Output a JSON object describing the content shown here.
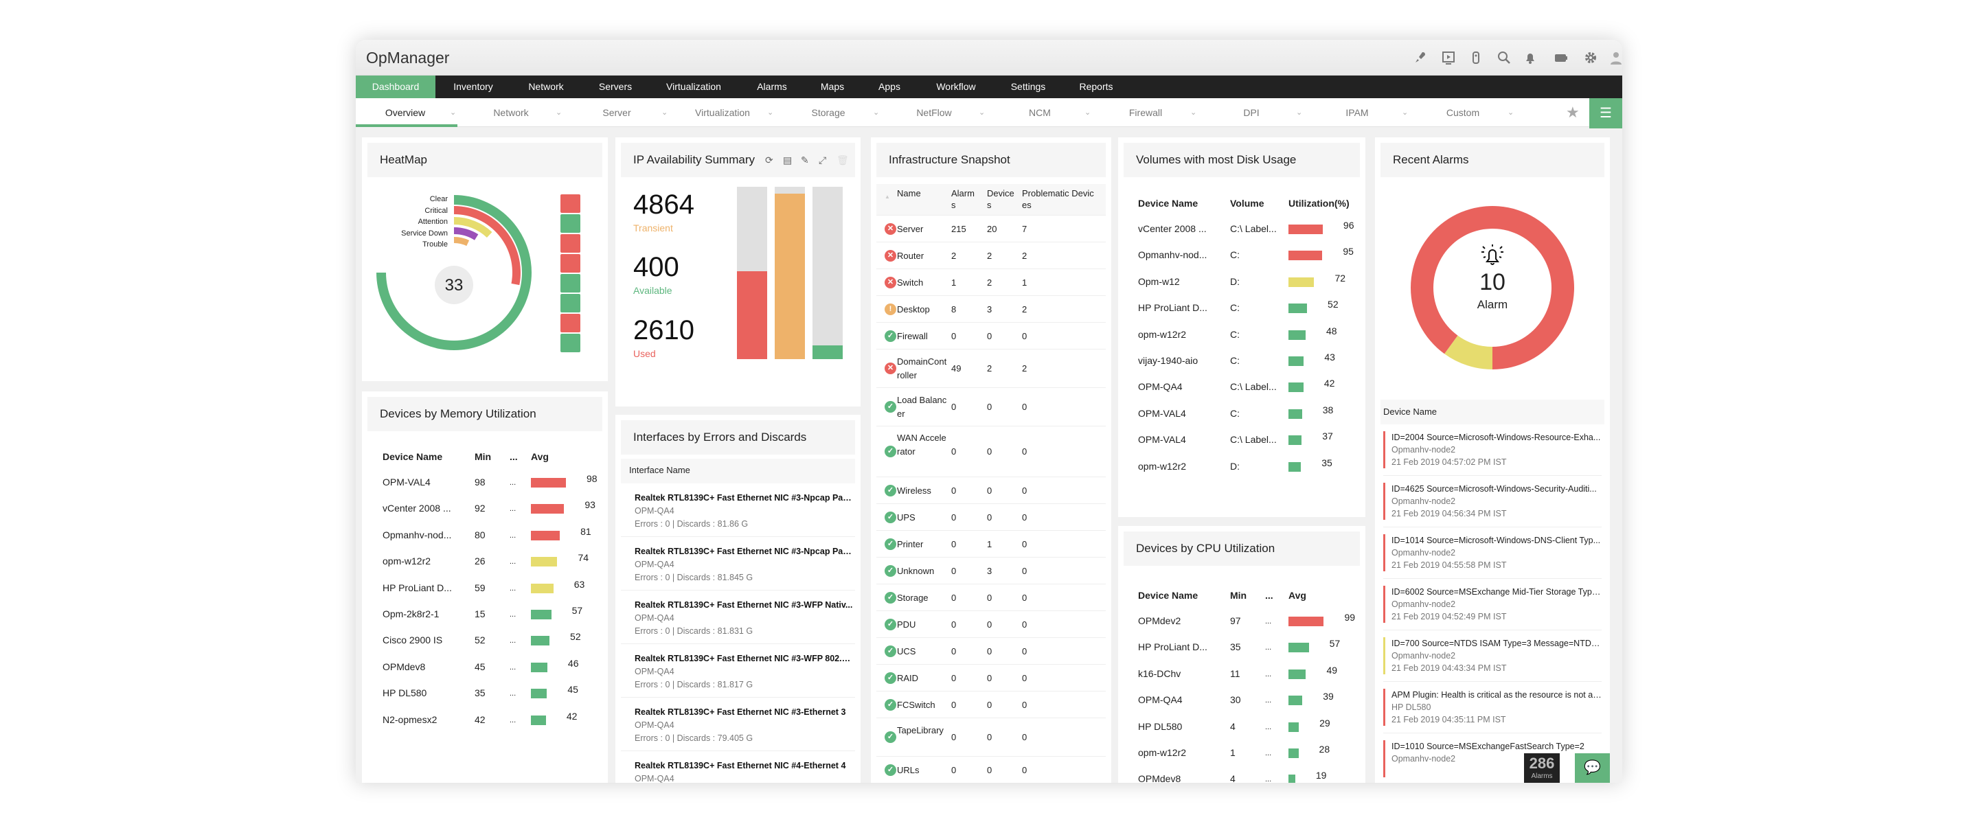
{
  "app_title": "OpManager",
  "colors": {
    "accent": "#63b47d",
    "critical": "#e9625d",
    "attention": "#e6dc6e",
    "clear": "#5db67e",
    "trouble": "#eeb26a",
    "service_down": "#9b51b8",
    "nav_bg": "#222222"
  },
  "titlebar_icons": [
    "rocket-icon",
    "monitor-play-icon",
    "remote-icon",
    "search-icon",
    "bell-icon",
    "battery-icon",
    "gear-icon",
    "user-icon"
  ],
  "main_nav": [
    "Dashboard",
    "Inventory",
    "Network",
    "Servers",
    "Virtualization",
    "Alarms",
    "Maps",
    "Apps",
    "Workflow",
    "Settings",
    "Reports"
  ],
  "sub_nav": [
    "Overview",
    "Network",
    "Server",
    "Virtualization",
    "Storage",
    "NetFlow",
    "NCM",
    "Firewall",
    "DPI",
    "IPAM",
    "Custom"
  ],
  "heatmap": {
    "title": "HeatMap",
    "total": "33",
    "rings": [
      {
        "label": "Clear",
        "color": "#5db67e",
        "fraction": 0.75
      },
      {
        "label": "Critical",
        "color": "#e9625d",
        "fraction": 0.28
      },
      {
        "label": "Attention",
        "color": "#e6dc6e",
        "fraction": 0.12
      },
      {
        "label": "Service Down",
        "color": "#9b51b8",
        "fraction": 0.09
      },
      {
        "label": "Trouble",
        "color": "#eeb26a",
        "fraction": 0.07
      }
    ],
    "squares": [
      "critical",
      "clear",
      "critical",
      "critical",
      "clear",
      "clear",
      "critical",
      "clear"
    ]
  },
  "ip": {
    "title": "IP Availability Summary",
    "tools": [
      "refresh-icon",
      "report-icon",
      "edit-icon",
      "expand-icon",
      "delete-icon"
    ],
    "stats": [
      {
        "value": "4864",
        "label": "Transient",
        "color": "#eeb26a"
      },
      {
        "value": "400",
        "label": "Available",
        "color": "#5db67e"
      },
      {
        "value": "2610",
        "label": "Used",
        "color": "#e9625d"
      }
    ],
    "bars": [
      {
        "color": "#e9625d",
        "fill": 0.51
      },
      {
        "color": "#eeb26a",
        "fill": 0.96
      },
      {
        "color": "#5db67e",
        "fill": 0.08
      }
    ]
  },
  "memory": {
    "title": "Devices by Memory Utilization",
    "headers": [
      "Device Name",
      "Min",
      "...",
      "Avg"
    ],
    "rows": [
      {
        "name": "OPM-VAL4",
        "min": "98",
        "avg": 98,
        "level": "critical"
      },
      {
        "name": "vCenter 2008 ...",
        "min": "92",
        "avg": 93,
        "level": "critical"
      },
      {
        "name": "Opmanhv-nod...",
        "min": "80",
        "avg": 81,
        "level": "critical"
      },
      {
        "name": "opm-w12r2",
        "min": "26",
        "avg": 74,
        "level": "attention"
      },
      {
        "name": "HP ProLiant D...",
        "min": "59",
        "avg": 63,
        "level": "attention"
      },
      {
        "name": "Opm-2k8r2-1",
        "min": "15",
        "avg": 57,
        "level": "clear"
      },
      {
        "name": "Cisco 2900 IS",
        "min": "52",
        "avg": 52,
        "level": "clear"
      },
      {
        "name": "OPMdev8",
        "min": "45",
        "avg": 46,
        "level": "clear"
      },
      {
        "name": "HP DL580",
        "min": "35",
        "avg": 45,
        "level": "clear"
      },
      {
        "name": "N2-opmesx2",
        "min": "42",
        "avg": 42,
        "level": "clear"
      }
    ]
  },
  "interfaces": {
    "title": "Interfaces by Errors and Discards",
    "header": "Interface Name",
    "items": [
      {
        "name": "Realtek RTL8139C+ Fast Ethernet NIC #3-Npcap Pack...",
        "device": "OPM-QA4",
        "stats": "Errors : 0 | Discards : 81.86 G"
      },
      {
        "name": "Realtek RTL8139C+ Fast Ethernet NIC #3-Npcap Pack...",
        "device": "OPM-QA4",
        "stats": "Errors : 0 | Discards : 81.845 G"
      },
      {
        "name": "Realtek RTL8139C+ Fast Ethernet NIC #3-WFP Nativ...",
        "device": "OPM-QA4",
        "stats": "Errors : 0 | Discards : 81.831 G"
      },
      {
        "name": "Realtek RTL8139C+ Fast Ethernet NIC #3-WFP 802.3 ...",
        "device": "OPM-QA4",
        "stats": "Errors : 0 | Discards : 81.817 G"
      },
      {
        "name": "Realtek RTL8139C+ Fast Ethernet NIC #3-Ethernet 3",
        "device": "OPM-QA4",
        "stats": "Errors : 0 | Discards : 79.405 G"
      },
      {
        "name": "Realtek RTL8139C+ Fast Ethernet NIC #4-Ethernet 4",
        "device": "OPM-QA4",
        "stats": ""
      }
    ]
  },
  "infra": {
    "title": "Infrastructure Snapshot",
    "headers": [
      "Name",
      "Alarms",
      "Devices",
      "Problematic Devices"
    ],
    "rows": [
      {
        "name": "Server",
        "status": "critical",
        "alarms": "215",
        "devices": "20",
        "problematic": "7"
      },
      {
        "name": "Router",
        "status": "critical",
        "alarms": "2",
        "devices": "2",
        "problematic": "2"
      },
      {
        "name": "Switch",
        "status": "critical",
        "alarms": "1",
        "devices": "2",
        "problematic": "1"
      },
      {
        "name": "Desktop",
        "status": "trouble",
        "alarms": "8",
        "devices": "3",
        "problematic": "2"
      },
      {
        "name": "Firewall",
        "status": "clear",
        "alarms": "0",
        "devices": "0",
        "problematic": "0"
      },
      {
        "name": "DomainController",
        "status": "critical",
        "alarms": "49",
        "devices": "2",
        "problematic": "2"
      },
      {
        "name": "Load Balancer",
        "status": "clear",
        "alarms": "0",
        "devices": "0",
        "problematic": "0"
      },
      {
        "name": "WAN Accelerator",
        "status": "clear",
        "alarms": "0",
        "devices": "0",
        "problematic": "0"
      },
      {
        "name": "Wireless",
        "status": "clear",
        "alarms": "0",
        "devices": "0",
        "problematic": "0"
      },
      {
        "name": "UPS",
        "status": "clear",
        "alarms": "0",
        "devices": "0",
        "problematic": "0"
      },
      {
        "name": "Printer",
        "status": "clear",
        "alarms": "0",
        "devices": "1",
        "problematic": "0"
      },
      {
        "name": "Unknown",
        "status": "clear",
        "alarms": "0",
        "devices": "3",
        "problematic": "0"
      },
      {
        "name": "Storage",
        "status": "clear",
        "alarms": "0",
        "devices": "0",
        "problematic": "0"
      },
      {
        "name": "PDU",
        "status": "clear",
        "alarms": "0",
        "devices": "0",
        "problematic": "0"
      },
      {
        "name": "UCS",
        "status": "clear",
        "alarms": "0",
        "devices": "0",
        "problematic": "0"
      },
      {
        "name": "RAID",
        "status": "clear",
        "alarms": "0",
        "devices": "0",
        "problematic": "0"
      },
      {
        "name": "FCSwitch",
        "status": "clear",
        "alarms": "0",
        "devices": "0",
        "problematic": "0"
      },
      {
        "name": "TapeLibrary",
        "status": "clear",
        "alarms": "0",
        "devices": "0",
        "problematic": "0"
      },
      {
        "name": "URLs",
        "status": "clear",
        "alarms": "0",
        "devices": "0",
        "problematic": "0"
      }
    ]
  },
  "volumes": {
    "title": "Volumes with most Disk Usage",
    "headers": [
      "Device Name",
      "Volume",
      "Utilization(%)"
    ],
    "rows": [
      {
        "name": "vCenter 2008 ...",
        "volume": "C:\\ Label...",
        "util": 96,
        "level": "critical"
      },
      {
        "name": "Opmanhv-nod...",
        "volume": "C:",
        "util": 95,
        "level": "critical"
      },
      {
        "name": "Opm-w12",
        "volume": "D:",
        "util": 72,
        "level": "attention"
      },
      {
        "name": "HP ProLiant D...",
        "volume": "C:",
        "util": 52,
        "level": "clear"
      },
      {
        "name": "opm-w12r2",
        "volume": "C:",
        "util": 48,
        "level": "clear"
      },
      {
        "name": "vijay-1940-aio",
        "volume": "C:",
        "util": 43,
        "level": "clear"
      },
      {
        "name": "OPM-QA4",
        "volume": "C:\\ Label...",
        "util": 42,
        "level": "clear"
      },
      {
        "name": "OPM-VAL4",
        "volume": "C:",
        "util": 38,
        "level": "clear"
      },
      {
        "name": "OPM-VAL4",
        "volume": "C:\\ Label...",
        "util": 37,
        "level": "clear"
      },
      {
        "name": "opm-w12r2",
        "volume": "D:",
        "util": 35,
        "level": "clear"
      }
    ]
  },
  "cpu": {
    "title": "Devices by CPU Utilization",
    "headers": [
      "Device Name",
      "Min",
      "...",
      "Avg"
    ],
    "rows": [
      {
        "name": "OPMdev2",
        "min": "97",
        "avg": 99,
        "level": "critical"
      },
      {
        "name": "HP ProLiant D...",
        "min": "35",
        "avg": 57,
        "level": "clear"
      },
      {
        "name": "k16-DChv",
        "min": "11",
        "avg": 49,
        "level": "clear"
      },
      {
        "name": "OPM-QA4",
        "min": "30",
        "avg": 39,
        "level": "clear"
      },
      {
        "name": "HP DL580",
        "min": "4",
        "avg": 29,
        "level": "clear"
      },
      {
        "name": "opm-w12r2",
        "min": "1",
        "avg": 28,
        "level": "clear"
      },
      {
        "name": "OPMdev8",
        "min": "4",
        "avg": 19,
        "level": "clear"
      }
    ]
  },
  "alarms": {
    "title": "Recent Alarms",
    "count": "10",
    "count_label": "Alarm",
    "donut": [
      {
        "severity": "attention",
        "color": "#e6dc6e",
        "fraction": 0.1
      },
      {
        "severity": "critical",
        "color": "#e9625d",
        "fraction": 0.9
      }
    ],
    "list_header": "Device Name",
    "items": [
      {
        "message": "ID=2004 Source=Microsoft-Windows-Resource-Exha...",
        "device": "Opmanhv-node2",
        "time": "21 Feb 2019 04:57:02 PM IST",
        "severity": "critical"
      },
      {
        "message": "ID=4625 Source=Microsoft-Windows-Security-Auditi...",
        "device": "Opmanhv-node2",
        "time": "21 Feb 2019 04:56:34 PM IST",
        "severity": "critical"
      },
      {
        "message": "ID=1014 Source=Microsoft-Windows-DNS-Client Typ...",
        "device": "Opmanhv-node2",
        "time": "21 Feb 2019 04:55:58 PM IST",
        "severity": "critical"
      },
      {
        "message": "ID=6002 Source=MSExchange Mid-Tier Storage Type=...",
        "device": "Opmanhv-node2",
        "time": "21 Feb 2019 04:52:49 PM IST",
        "severity": "critical"
      },
      {
        "message": "ID=700 Source=NTDS ISAM Type=3 Message=NTDS (...",
        "device": "Opmanhv-node2",
        "time": "21 Feb 2019 04:43:34 PM IST",
        "severity": "attention"
      },
      {
        "message": "APM Plugin: Health is critical as the resource is not ava...",
        "device": "HP DL580",
        "time": "21 Feb 2019 04:35:11 PM IST",
        "severity": "critical"
      },
      {
        "message": "ID=1010 Source=MSExchangeFastSearch Type=2",
        "device": "Opmanhv-node2",
        "time": "",
        "severity": "critical"
      }
    ],
    "badge_count": "286",
    "badge_label": "Alarms"
  }
}
